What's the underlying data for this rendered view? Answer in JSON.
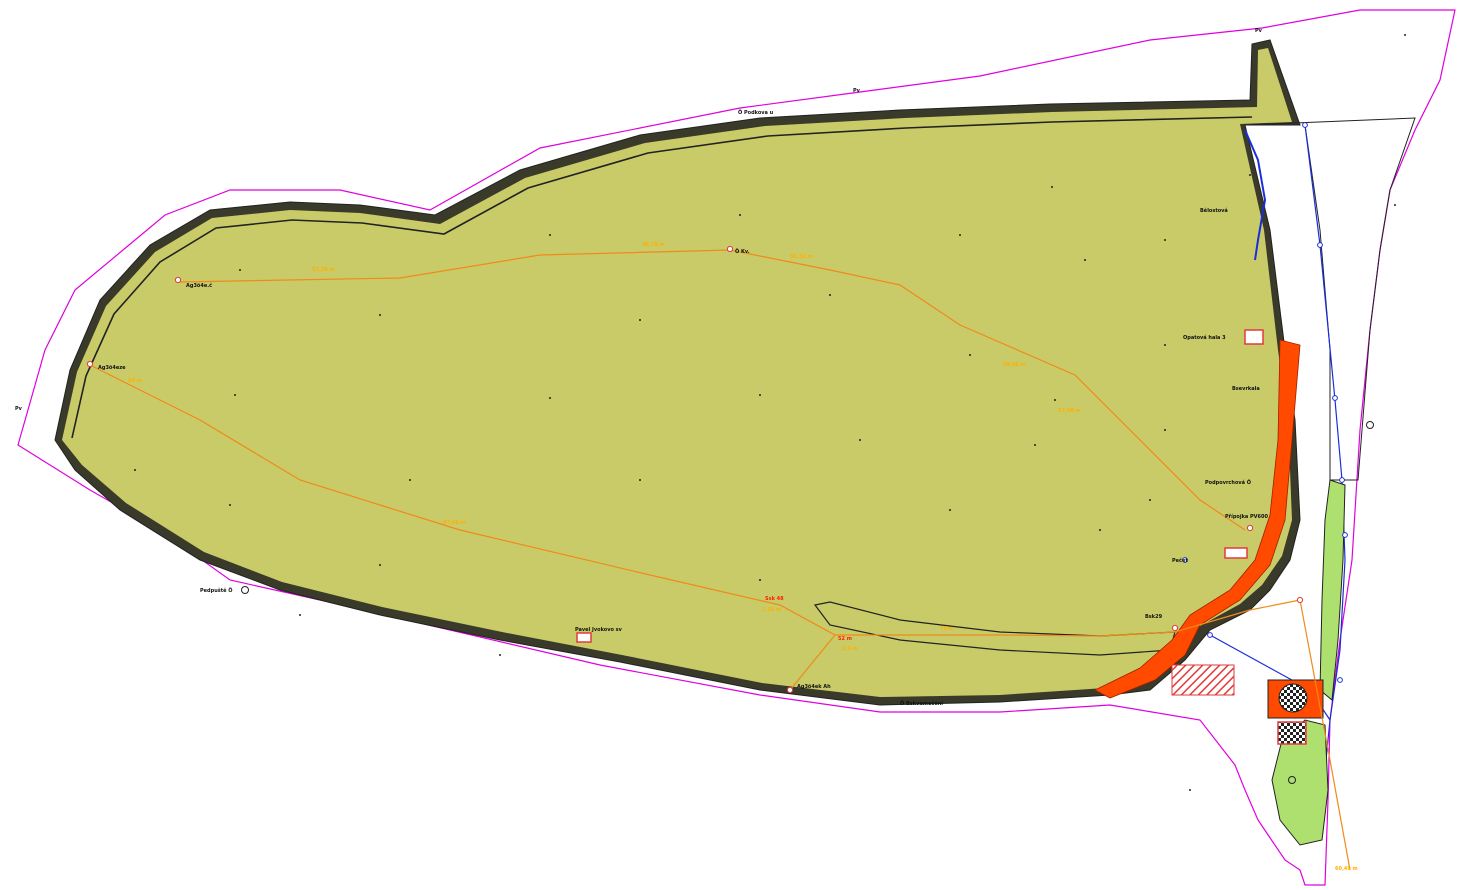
{
  "colors": {
    "parcel_boundary": "#e000e0",
    "grass_fill": "#c9cb68",
    "green_fill": "#aee070",
    "path_orange": "#f08a1a",
    "red_band": "#ff4a00",
    "pipe_blue": "#1a2ed8",
    "outline": "#222222",
    "hatch_red": "#e33a3a"
  },
  "icons": [
    "survey-point-icon",
    "manhole-icon",
    "valve-icon",
    "tree-icon",
    "hatched-building-icon"
  ],
  "labels": {
    "top_left_boundary": "Pv",
    "north_marker": "Pv",
    "west_marker": "Pv",
    "point_near_top": "Ö Podkova u",
    "point_west_upper": "Ag3ö4e.č",
    "point_west_lower": "Ag3ö4eze",
    "point_center": "Ö Kv.",
    "point_south_west": "Pedpuště Ö",
    "point_south_building": "Pavel Jvokovo sv",
    "point_south_center": "Ag3ö4ek Ah",
    "point_south_edge": "Ö Bskvemečěni",
    "point_east_1": "Bělostová",
    "point_east_2": "Opatová hala 3",
    "point_east_3": "Bsevrkala",
    "point_east_4": "Podpovrchová Ö",
    "point_east_5": "Přípojka PV600",
    "point_east_6": "Pečet",
    "point_east_7": "Bsk29"
  },
  "dimensions": [
    "57,38 m",
    "48,78 m",
    "56,32 m",
    "39,86 m",
    "57,48 m",
    "69 m",
    "97,96 m",
    "Ssk 48",
    "1,25 m",
    "75 m",
    "52 m",
    "1,5 m",
    "60,49 m"
  ]
}
